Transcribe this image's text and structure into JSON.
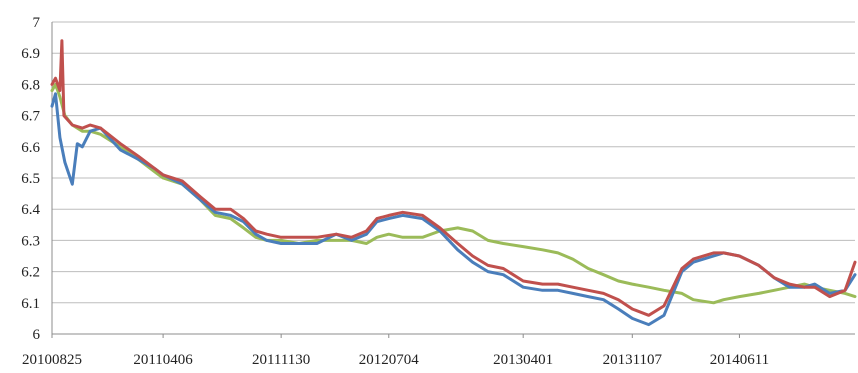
{
  "chart_data": {
    "type": "line",
    "title": "",
    "xlabel": "",
    "ylabel": "",
    "ylim": [
      6,
      7
    ],
    "yticks": [
      "6",
      "6.1",
      "6.2",
      "6.3",
      "6.4",
      "6.5",
      "6.6",
      "6.7",
      "6.8",
      "6.9",
      "7"
    ],
    "xlim": [
      "2010-08-25",
      "2015-01-30"
    ],
    "xticks": [
      {
        "label": "20100825",
        "date": "2010-08-25"
      },
      {
        "label": "20110406",
        "date": "2011-04-06"
      },
      {
        "label": "20111130",
        "date": "2011-11-30"
      },
      {
        "label": "20120704",
        "date": "2012-07-04"
      },
      {
        "label": "20130401",
        "date": "2013-04-01"
      },
      {
        "label": "20131107",
        "date": "2013-11-07"
      },
      {
        "label": "20140611",
        "date": "2014-06-11"
      }
    ],
    "grid": "horizontal",
    "legend": "none",
    "series": [
      {
        "color": "#4a7ebb",
        "x": [
          "2010-08-25",
          "2010-09-01",
          "2010-09-10",
          "2010-09-20",
          "2010-10-05",
          "2010-10-15",
          "2010-10-25",
          "2010-11-10",
          "2010-12-01",
          "2011-01-10",
          "2011-02-15",
          "2011-03-20",
          "2011-04-06",
          "2011-05-15",
          "2011-06-20",
          "2011-07-20",
          "2011-08-20",
          "2011-09-15",
          "2011-10-10",
          "2011-11-01",
          "2011-11-30",
          "2012-01-05",
          "2012-02-10",
          "2012-03-20",
          "2012-04-20",
          "2012-05-20",
          "2012-06-10",
          "2012-07-04",
          "2012-08-01",
          "2012-09-10",
          "2012-10-15",
          "2012-11-20",
          "2012-12-20",
          "2013-01-20",
          "2013-02-20",
          "2013-04-01",
          "2013-05-10",
          "2013-06-10",
          "2013-07-10",
          "2013-08-10",
          "2013-09-10",
          "2013-10-10",
          "2013-11-07",
          "2013-12-10",
          "2014-01-10",
          "2014-02-15",
          "2014-03-10",
          "2014-04-20",
          "2014-05-10",
          "2014-06-11",
          "2014-07-20",
          "2014-08-20",
          "2014-09-20",
          "2014-10-20",
          "2014-11-10",
          "2014-12-10",
          "2015-01-10",
          "2015-01-30"
        ],
        "y": [
          6.73,
          6.77,
          6.63,
          6.55,
          6.48,
          6.61,
          6.6,
          6.65,
          6.66,
          6.59,
          6.56,
          6.53,
          6.51,
          6.48,
          6.43,
          6.39,
          6.38,
          6.36,
          6.32,
          6.3,
          6.29,
          6.29,
          6.29,
          6.32,
          6.3,
          6.32,
          6.36,
          6.37,
          6.38,
          6.37,
          6.33,
          6.27,
          6.23,
          6.2,
          6.19,
          6.15,
          6.14,
          6.14,
          6.13,
          6.12,
          6.11,
          6.08,
          6.05,
          6.03,
          6.06,
          6.2,
          6.23,
          6.25,
          6.26,
          6.25,
          6.22,
          6.18,
          6.15,
          6.15,
          6.16,
          6.13,
          6.14,
          6.19
        ]
      },
      {
        "color": "#c0504d",
        "x": [
          "2010-08-25",
          "2010-09-01",
          "2010-09-10",
          "2010-09-14",
          "2010-09-18",
          "2010-10-05",
          "2010-10-25",
          "2010-11-10",
          "2010-12-01",
          "2011-01-10",
          "2011-02-15",
          "2011-03-20",
          "2011-04-06",
          "2011-05-15",
          "2011-06-20",
          "2011-07-20",
          "2011-08-20",
          "2011-09-15",
          "2011-10-10",
          "2011-11-01",
          "2011-11-30",
          "2012-01-05",
          "2012-02-10",
          "2012-03-20",
          "2012-04-20",
          "2012-05-20",
          "2012-06-10",
          "2012-07-04",
          "2012-08-01",
          "2012-09-10",
          "2012-10-15",
          "2012-11-20",
          "2012-12-20",
          "2013-01-20",
          "2013-02-20",
          "2013-04-01",
          "2013-05-10",
          "2013-06-10",
          "2013-07-10",
          "2013-08-10",
          "2013-09-10",
          "2013-10-10",
          "2013-11-07",
          "2013-12-10",
          "2014-01-10",
          "2014-02-15",
          "2014-03-10",
          "2014-04-20",
          "2014-05-10",
          "2014-06-11",
          "2014-07-20",
          "2014-08-20",
          "2014-09-20",
          "2014-10-20",
          "2014-11-10",
          "2014-12-10",
          "2015-01-10",
          "2015-01-30"
        ],
        "y": [
          6.8,
          6.82,
          6.78,
          6.94,
          6.7,
          6.67,
          6.66,
          6.67,
          6.66,
          6.61,
          6.57,
          6.53,
          6.51,
          6.49,
          6.44,
          6.4,
          6.4,
          6.37,
          6.33,
          6.32,
          6.31,
          6.31,
          6.31,
          6.32,
          6.31,
          6.33,
          6.37,
          6.38,
          6.39,
          6.38,
          6.34,
          6.29,
          6.25,
          6.22,
          6.21,
          6.17,
          6.16,
          6.16,
          6.15,
          6.14,
          6.13,
          6.11,
          6.08,
          6.06,
          6.09,
          6.21,
          6.24,
          6.26,
          6.26,
          6.25,
          6.22,
          6.18,
          6.16,
          6.15,
          6.15,
          6.12,
          6.14,
          6.23
        ]
      },
      {
        "color": "#9bbb59",
        "x": [
          "2010-08-25",
          "2010-09-01",
          "2010-09-10",
          "2010-09-20",
          "2010-10-05",
          "2010-10-25",
          "2010-11-10",
          "2010-12-01",
          "2011-01-10",
          "2011-02-15",
          "2011-03-20",
          "2011-04-06",
          "2011-05-15",
          "2011-06-20",
          "2011-07-20",
          "2011-08-20",
          "2011-09-15",
          "2011-10-10",
          "2011-11-01",
          "2011-11-30",
          "2012-01-05",
          "2012-02-10",
          "2012-03-20",
          "2012-04-20",
          "2012-05-20",
          "2012-06-10",
          "2012-07-04",
          "2012-08-01",
          "2012-09-10",
          "2012-10-15",
          "2012-11-20",
          "2012-12-20",
          "2013-01-20",
          "2013-02-20",
          "2013-04-01",
          "2013-05-10",
          "2013-06-10",
          "2013-07-10",
          "2013-08-10",
          "2013-09-10",
          "2013-10-10",
          "2013-11-07",
          "2013-12-10",
          "2014-01-10",
          "2014-02-15",
          "2014-03-10",
          "2014-04-20",
          "2014-05-10",
          "2014-06-11",
          "2014-07-20",
          "2014-08-20",
          "2014-09-20",
          "2014-10-20",
          "2014-11-10",
          "2014-12-10",
          "2015-01-10",
          "2015-01-30"
        ],
        "y": [
          6.78,
          6.8,
          6.76,
          6.7,
          6.67,
          6.65,
          6.65,
          6.64,
          6.6,
          6.56,
          6.52,
          6.5,
          6.48,
          6.43,
          6.38,
          6.37,
          6.34,
          6.31,
          6.3,
          6.3,
          6.29,
          6.3,
          6.3,
          6.3,
          6.29,
          6.31,
          6.32,
          6.31,
          6.31,
          6.33,
          6.34,
          6.33,
          6.3,
          6.29,
          6.28,
          6.27,
          6.26,
          6.24,
          6.21,
          6.19,
          6.17,
          6.16,
          6.15,
          6.14,
          6.13,
          6.11,
          6.1,
          6.11,
          6.12,
          6.13,
          6.14,
          6.15,
          6.16,
          6.15,
          6.14,
          6.13,
          6.12
        ]
      }
    ]
  }
}
